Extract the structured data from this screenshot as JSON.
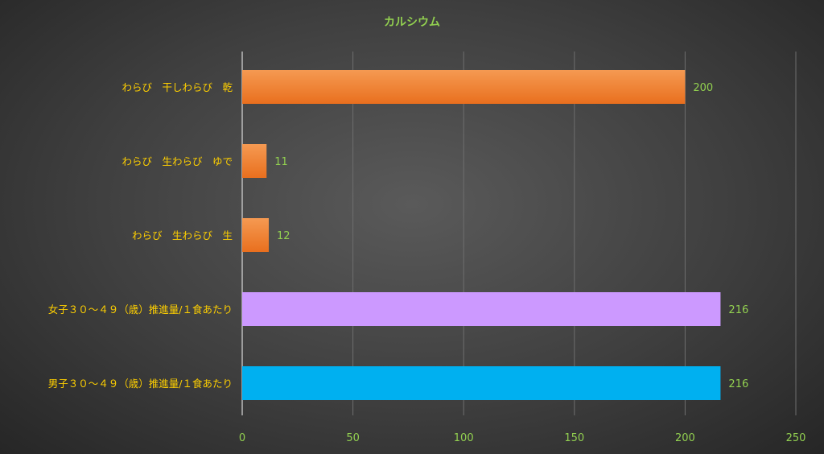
{
  "chart_data": {
    "type": "bar",
    "orientation": "horizontal",
    "title": "カルシウム",
    "categories": [
      "わらび　干しわらび　乾",
      "わらび　生わらび　ゆで",
      "わらび　生わらび　生",
      "女子３０～４９（歳）推進量/１食あたり",
      "男子３０～４９（歳）推進量/１食あたり"
    ],
    "values": [
      200,
      11,
      12,
      216,
      216
    ],
    "bar_colors": [
      "#f07c2c",
      "#f07c2c",
      "#f07c2c",
      "#cc99ff",
      "#00b0f0"
    ],
    "xlim": [
      0,
      250
    ],
    "xticks": [
      0,
      50,
      100,
      150,
      200,
      250
    ],
    "xlabel": "",
    "ylabel": "",
    "grid": true,
    "legend": "none",
    "colors": {
      "title": "#92d050",
      "category_label": "#ffd000",
      "value_label": "#92d050",
      "tick_label": "#92d050",
      "grid": "#6e6e6e",
      "axis": "#d9d9d9"
    }
  }
}
